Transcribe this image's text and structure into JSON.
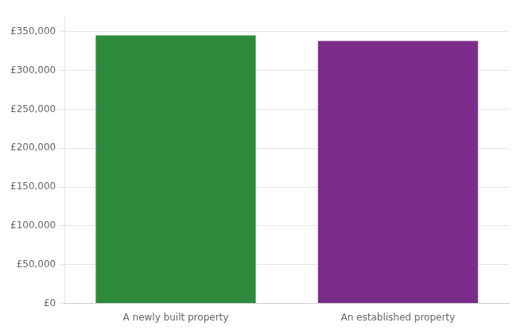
{
  "chart_data": {
    "type": "bar",
    "categories": [
      "A newly built property",
      "An established property"
    ],
    "values": [
      345000,
      338000
    ],
    "colors": [
      "#2e8b3e",
      "#7b2d8b"
    ],
    "ylim": [
      0,
      370000
    ],
    "yticks": [
      {
        "value": 0,
        "label": "£0"
      },
      {
        "value": 50000,
        "label": "£50,000"
      },
      {
        "value": 100000,
        "label": "£100,000"
      },
      {
        "value": 150000,
        "label": "£150,000"
      },
      {
        "value": 200000,
        "label": "£200,000"
      },
      {
        "value": 250000,
        "label": "£250,000"
      },
      {
        "value": 300000,
        "label": "£300,000"
      },
      {
        "value": 350000,
        "label": "£350,000"
      }
    ],
    "grid": true
  }
}
